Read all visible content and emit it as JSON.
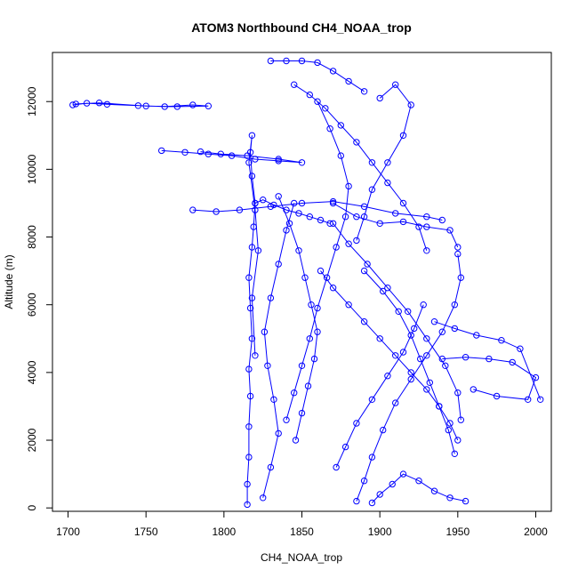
{
  "chart_data": {
    "type": "scatter",
    "title": "ATOM3 Northbound CH4_NOAA_trop",
    "xlabel": "CH4_NOAA_trop",
    "ylabel": "Altitude (m)",
    "xlim": [
      1690,
      2010
    ],
    "ylim": [
      -100,
      13450
    ],
    "x_ticks": [
      1700,
      1750,
      1800,
      1850,
      1900,
      1950,
      2000
    ],
    "y_ticks": [
      0,
      2000,
      4000,
      6000,
      8000,
      10000,
      12000
    ],
    "grid": false,
    "legend": "none",
    "marker": "open-circle",
    "connected": true,
    "colors": {
      "series": "#0000ff"
    },
    "series": [
      {
        "x": [
          1815,
          1815,
          1816,
          1816,
          1817,
          1816,
          1818,
          1817,
          1816,
          1818,
          1819,
          1820,
          1818,
          1817,
          1818,
          1816,
          1820,
          1822,
          1818,
          1820
        ],
        "y": [
          100,
          700,
          1500,
          2400,
          3300,
          4100,
          5000,
          5900,
          6800,
          7700,
          8300,
          9000,
          9800,
          10500,
          11000,
          10200,
          8800,
          7600,
          6200,
          4500
        ]
      },
      {
        "x": [
          1703,
          1712,
          1725,
          1745,
          1762,
          1780,
          1790,
          1770,
          1750,
          1720,
          1705
        ],
        "y": [
          11900,
          11950,
          11920,
          11880,
          11850,
          11900,
          11870,
          11850,
          11870,
          11960,
          11930
        ]
      },
      {
        "x": [
          1760,
          1775,
          1790,
          1805,
          1820,
          1835,
          1850,
          1835,
          1815,
          1798,
          1785
        ],
        "y": [
          10550,
          10500,
          10450,
          10400,
          10300,
          10250,
          10200,
          10300,
          10400,
          10450,
          10520
        ]
      },
      {
        "x": [
          1780,
          1795,
          1810,
          1830,
          1850,
          1870,
          1890,
          1910,
          1930,
          1940
        ],
        "y": [
          8800,
          8750,
          8800,
          8900,
          9000,
          9050,
          8900,
          8700,
          8600,
          8500
        ]
      },
      {
        "x": [
          1830,
          1840,
          1850,
          1860,
          1870,
          1880,
          1890
        ],
        "y": [
          13200,
          13200,
          13200,
          13150,
          12900,
          12600,
          12300
        ]
      },
      {
        "x": [
          1845,
          1855,
          1865,
          1875,
          1885,
          1895,
          1905,
          1915,
          1925,
          1930
        ],
        "y": [
          12500,
          12200,
          11800,
          11300,
          10800,
          10200,
          9600,
          9000,
          8300,
          7600
        ]
      },
      {
        "x": [
          1900,
          1910,
          1920,
          1915,
          1905,
          1895,
          1890,
          1885
        ],
        "y": [
          12100,
          12500,
          11900,
          11000,
          10200,
          9400,
          8600,
          7900
        ]
      },
      {
        "x": [
          1860,
          1868,
          1875,
          1880,
          1878,
          1872,
          1866,
          1860,
          1855,
          1850,
          1845,
          1840
        ],
        "y": [
          12000,
          11200,
          10400,
          9500,
          8600,
          7700,
          6800,
          5900,
          5000,
          4200,
          3400,
          2600
        ]
      },
      {
        "x": [
          1862,
          1870,
          1880,
          1890,
          1900,
          1910,
          1920,
          1930,
          1938,
          1945,
          1950
        ],
        "y": [
          7000,
          6500,
          6000,
          5500,
          5000,
          4500,
          4000,
          3500,
          3000,
          2500,
          2000
        ]
      },
      {
        "x": [
          1870,
          1880,
          1892,
          1905,
          1918,
          1930,
          1942,
          1950,
          1952
        ],
        "y": [
          8400,
          7800,
          7200,
          6500,
          5800,
          5000,
          4200,
          3400,
          2600
        ]
      },
      {
        "x": [
          1885,
          1890,
          1895,
          1902,
          1910,
          1920,
          1930,
          1940,
          1948,
          1952,
          1950
        ],
        "y": [
          200,
          800,
          1500,
          2300,
          3100,
          3800,
          4500,
          5200,
          6000,
          6800,
          7500
        ]
      },
      {
        "x": [
          1895,
          1900,
          1908,
          1915,
          1925,
          1935,
          1945,
          1955
        ],
        "y": [
          150,
          400,
          700,
          1000,
          800,
          500,
          300,
          200
        ]
      },
      {
        "x": [
          1825,
          1830,
          1835,
          1832,
          1828,
          1826,
          1830,
          1835,
          1840,
          1845
        ],
        "y": [
          300,
          1200,
          2200,
          3200,
          4200,
          5200,
          6200,
          7200,
          8200,
          9000
        ]
      },
      {
        "x": [
          1835,
          1842,
          1848,
          1852,
          1856,
          1860,
          1858,
          1854,
          1850,
          1846
        ],
        "y": [
          9200,
          8400,
          7600,
          6800,
          6000,
          5200,
          4400,
          3600,
          2800,
          2000
        ]
      },
      {
        "x": [
          1940,
          1955,
          1970,
          1985,
          2000,
          1995,
          1975,
          1960
        ],
        "y": [
          4400,
          4450,
          4400,
          4300,
          3850,
          3200,
          3300,
          3500
        ]
      },
      {
        "x": [
          1935,
          1948,
          1962,
          1978,
          1990,
          2003
        ],
        "y": [
          5500,
          5300,
          5100,
          4950,
          4700,
          3200
        ]
      },
      {
        "x": [
          1870,
          1885,
          1900,
          1915,
          1930,
          1945,
          1950
        ],
        "y": [
          9000,
          8600,
          8400,
          8450,
          8300,
          8200,
          7700
        ]
      },
      {
        "x": [
          1890,
          1902,
          1912,
          1920,
          1926,
          1932,
          1938,
          1944,
          1948
        ],
        "y": [
          7000,
          6400,
          5800,
          5100,
          4400,
          3700,
          3000,
          2300,
          1600
        ]
      },
      {
        "x": [
          1872,
          1878,
          1885,
          1895,
          1905,
          1915,
          1922,
          1928
        ],
        "y": [
          1200,
          1800,
          2500,
          3200,
          3900,
          4600,
          5300,
          6000
        ]
      },
      {
        "x": [
          1820,
          1825,
          1832,
          1840,
          1848,
          1855,
          1862,
          1868
        ],
        "y": [
          9000,
          9100,
          8950,
          8800,
          8700,
          8600,
          8500,
          8400
        ]
      }
    ]
  }
}
